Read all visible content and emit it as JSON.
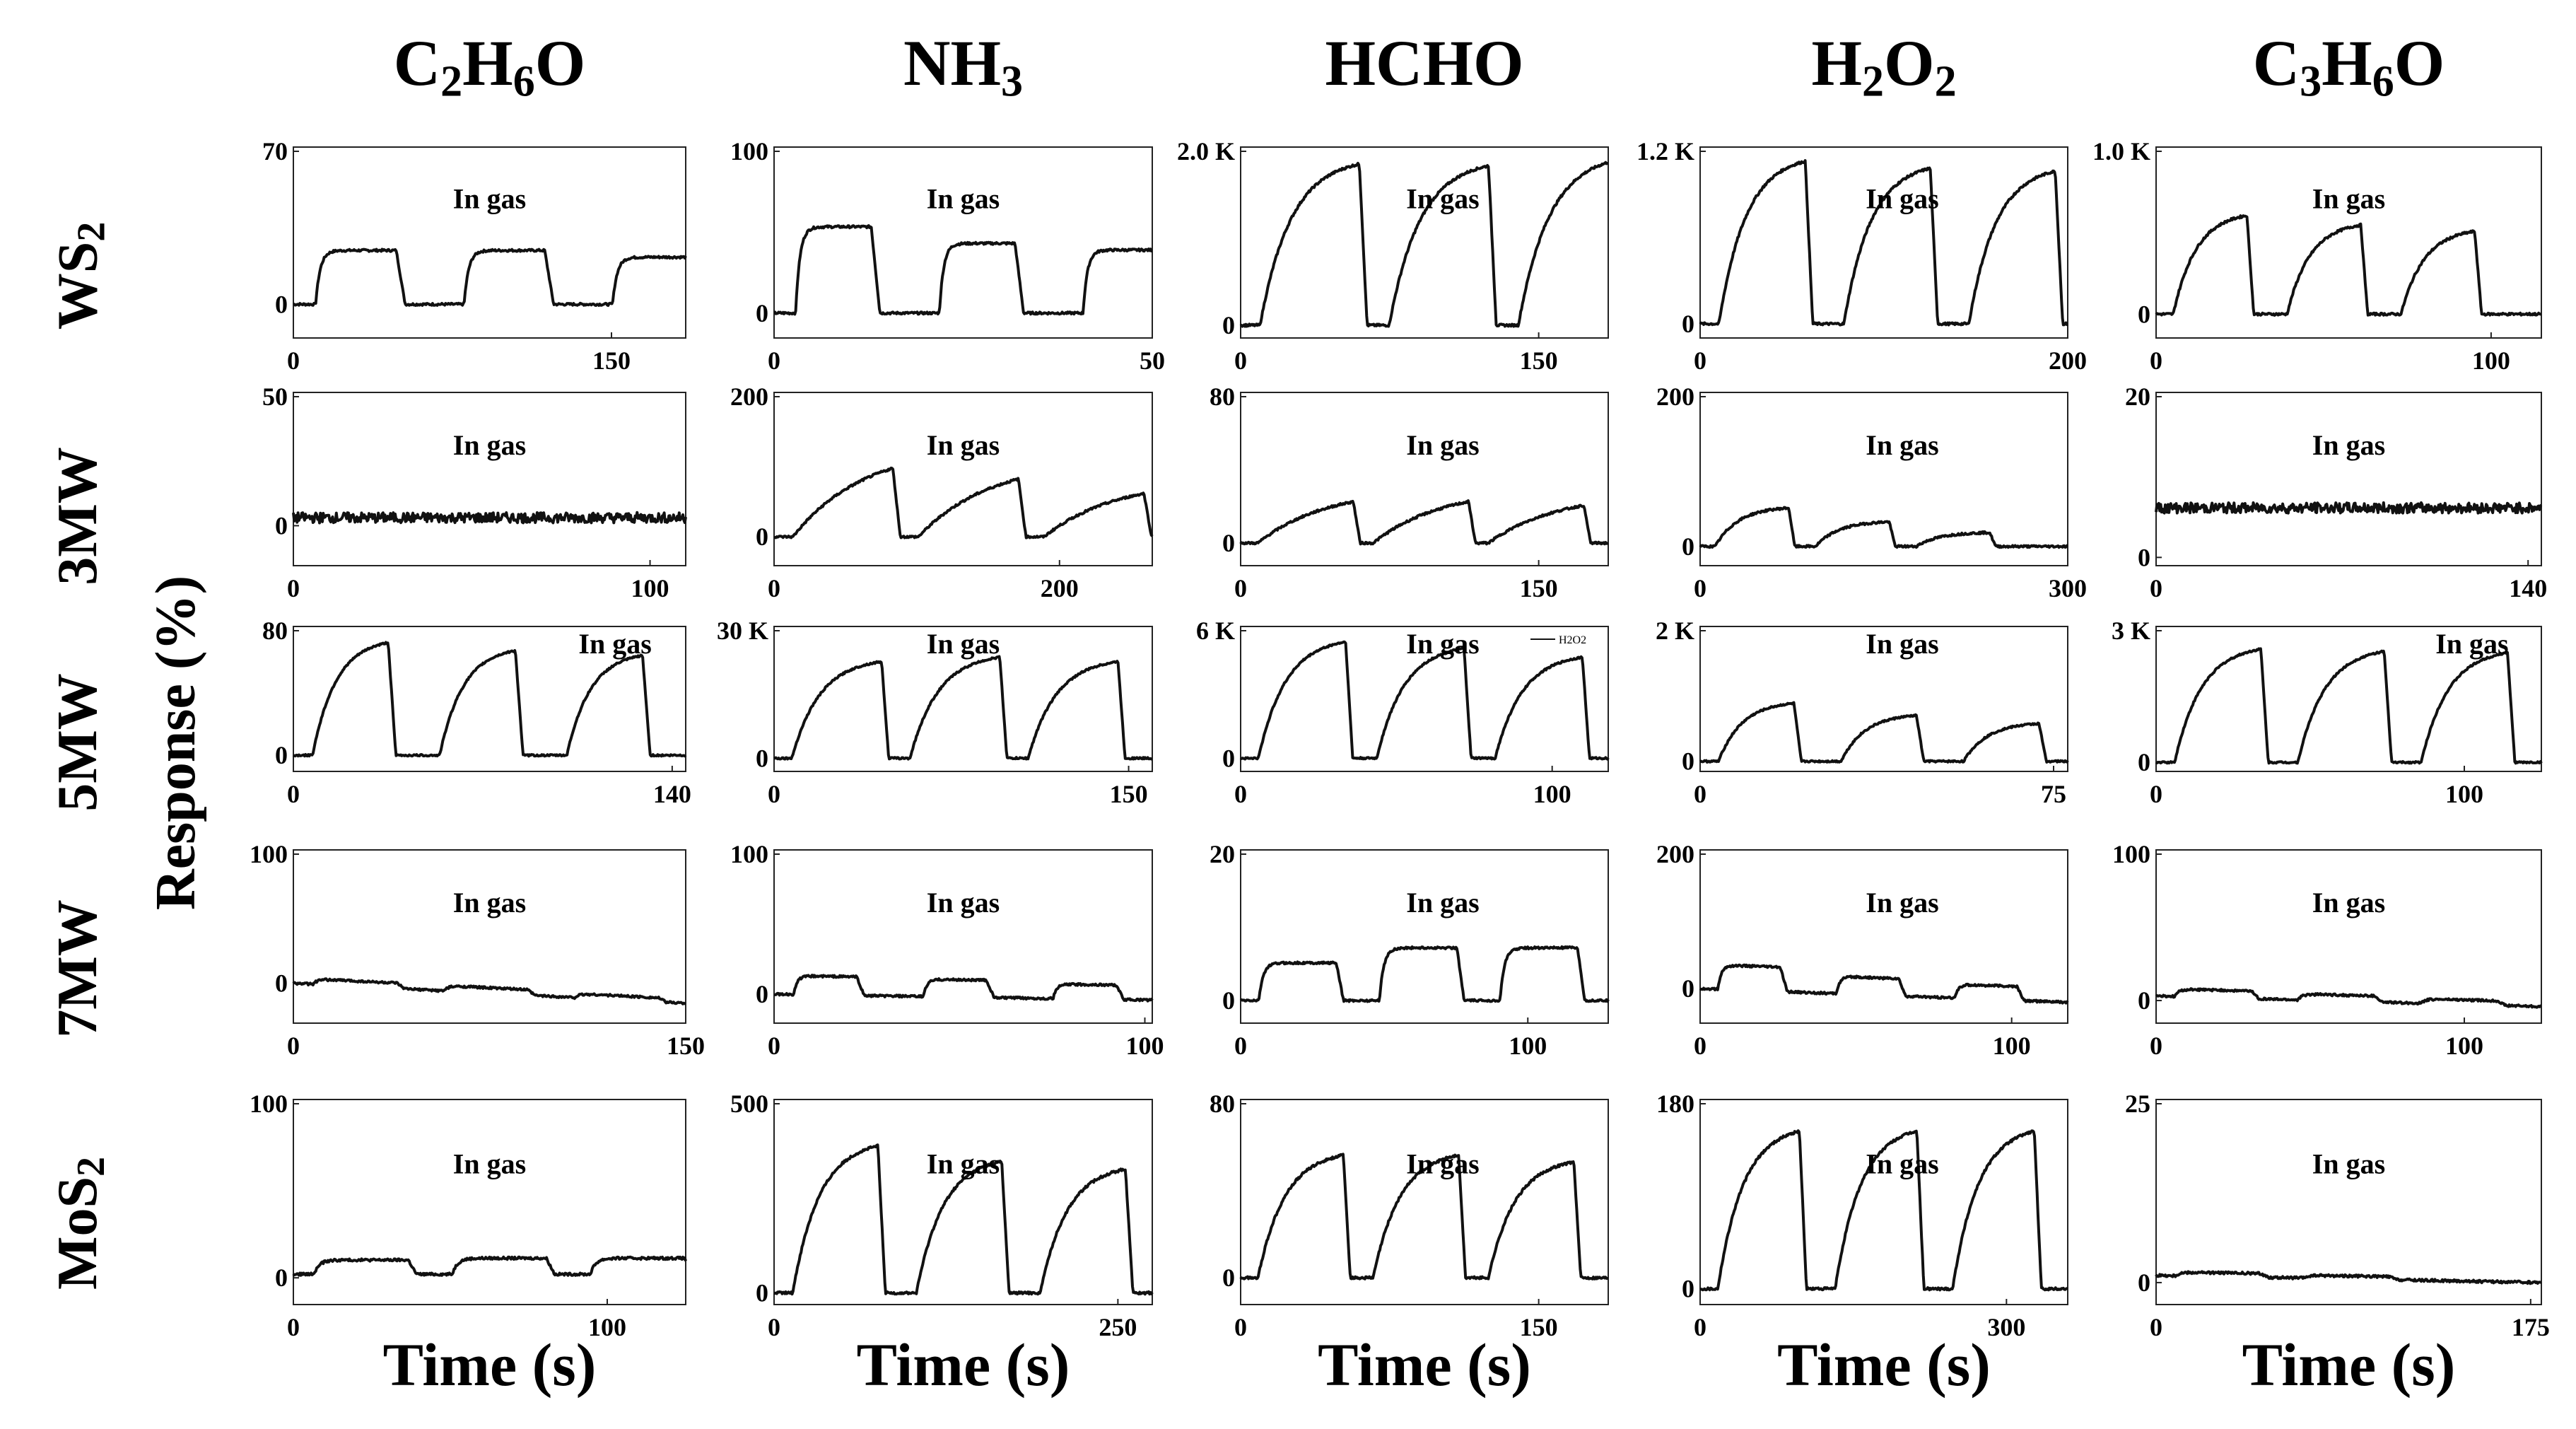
{
  "figure": {
    "columns": [
      {
        "main": "C",
        "parts": [
          [
            "C",
            "2"
          ],
          [
            "H",
            "6"
          ],
          [
            "O",
            ""
          ]
        ]
      },
      {
        "parts": [
          [
            "NH",
            "3"
          ]
        ]
      },
      {
        "parts": [
          [
            "HCHO",
            ""
          ]
        ]
      },
      {
        "parts": [
          [
            "H",
            "2"
          ],
          [
            "O",
            "2"
          ]
        ]
      },
      {
        "parts": [
          [
            "C",
            "3"
          ],
          [
            "H",
            "6"
          ],
          [
            "O",
            ""
          ]
        ]
      }
    ],
    "column_labels": [
      "C2H6O",
      "NH3",
      "HCHO",
      "H2O2",
      "C3H6O"
    ],
    "row_labels": [
      "WS2",
      "3MW",
      "5MW",
      "7MW",
      "MoS2"
    ],
    "y_axis_label": "Response (%)",
    "x_axis_label": "Time  (s)",
    "annotation": "In gas",
    "legend_small": "H2O2"
  },
  "chart_data": [
    {
      "type": "line",
      "row": "WS2",
      "gas": "C2H6O",
      "annotation": "In gas",
      "yticks": [
        "70",
        "0"
      ],
      "ylim": [
        -15,
        70
      ],
      "xticks": [
        0,
        150
      ],
      "xticklabels": [
        "0",
        "150"
      ],
      "xlim": [
        0,
        185
      ],
      "shape": "square",
      "n": 3,
      "cycle": 70,
      "on": 38,
      "amps": [
        24,
        24,
        21
      ],
      "base": 0
    },
    {
      "type": "line",
      "row": "WS2",
      "gas": "NH3",
      "annotation": "In gas",
      "yticks": [
        "100",
        "0"
      ],
      "ylim": [
        -15,
        100
      ],
      "xticks": [
        0,
        50
      ],
      "xticklabels": [
        "0",
        "50"
      ],
      "xlim": [
        0,
        50
      ],
      "shape": "square",
      "n": 3,
      "cycle": 19,
      "on": 10,
      "amps": [
        52,
        42,
        38
      ],
      "base": 0
    },
    {
      "type": "line",
      "row": "WS2",
      "gas": "HCHO",
      "annotation": "In gas",
      "yticks": [
        "2.0 K",
        "0"
      ],
      "ylim": [
        -150,
        2100
      ],
      "xticks": [
        0,
        150
      ],
      "xticklabels": [
        "0",
        "150"
      ],
      "xlim": [
        0,
        185
      ],
      "shape": "exp",
      "n": 3,
      "cycle": 65,
      "on": 50,
      "amps": [
        1900,
        1880,
        1950
      ],
      "base": 0
    },
    {
      "type": "line",
      "row": "WS2",
      "gas": "H2O2",
      "annotation": "In gas",
      "yticks": [
        "1.2 K",
        "0"
      ],
      "ylim": [
        -100,
        1250
      ],
      "xticks": [
        0,
        200
      ],
      "xticklabels": [
        "0",
        "200"
      ],
      "xlim": [
        0,
        200
      ],
      "shape": "exp",
      "n": 3,
      "cycle": 68,
      "on": 47,
      "amps": [
        1150,
        1100,
        1080
      ],
      "base": 0
    },
    {
      "type": "line",
      "row": "WS2",
      "gas": "C3H6O",
      "annotation": "In gas",
      "yticks": [
        "1.0 K",
        "0"
      ],
      "ylim": [
        -150,
        1050
      ],
      "xticks": [
        0,
        100
      ],
      "xticklabels": [
        "0",
        "100"
      ],
      "xlim": [
        0,
        115
      ],
      "shape": "exp",
      "n": 3,
      "cycle": 34,
      "on": 22,
      "amps": [
        620,
        560,
        520
      ],
      "base": 0
    },
    {
      "type": "line",
      "row": "3MW",
      "gas": "C2H6O",
      "annotation": "In gas",
      "yticks": [
        "50",
        "0"
      ],
      "ylim": [
        -15,
        50
      ],
      "xticks": [
        0,
        100
      ],
      "xticklabels": [
        "0",
        "100"
      ],
      "xlim": [
        0,
        110
      ],
      "shape": "flat",
      "n": 0,
      "base": 3
    },
    {
      "type": "line",
      "row": "3MW",
      "gas": "NH3",
      "annotation": "In gas",
      "yticks": [
        "200",
        "0"
      ],
      "ylim": [
        -40,
        200
      ],
      "xticks": [
        0,
        200
      ],
      "xticklabels": [
        "0",
        "200"
      ],
      "xlim": [
        0,
        265
      ],
      "shape": "sawtooth",
      "n": 3,
      "cycle": 88,
      "on": 70,
      "amps": [
        95,
        80,
        60
      ],
      "base": 0
    },
    {
      "type": "line",
      "row": "3MW",
      "gas": "HCHO",
      "annotation": "In gas",
      "yticks": [
        "80",
        "0"
      ],
      "ylim": [
        -12,
        80
      ],
      "xticks": [
        0,
        150
      ],
      "xticklabels": [
        "0",
        "150"
      ],
      "xlim": [
        0,
        185
      ],
      "shape": "sawtooth",
      "n": 3,
      "cycle": 58,
      "on": 48,
      "amps": [
        22,
        22,
        20
      ],
      "base": 0
    },
    {
      "type": "line",
      "row": "3MW",
      "gas": "H2O2",
      "annotation": "In gas",
      "yticks": [
        "200",
        "0"
      ],
      "ylim": [
        -25,
        200
      ],
      "xticks": [
        0,
        300
      ],
      "xticklabels": [
        "0",
        "300"
      ],
      "xlim": [
        0,
        300
      ],
      "shape": "exp",
      "n": 3,
      "cycle": 82,
      "on": 60,
      "amps": [
        50,
        32,
        18
      ],
      "base": 0
    },
    {
      "type": "line",
      "row": "3MW",
      "gas": "C3H6O",
      "annotation": "In gas",
      "yticks": [
        "20",
        "0"
      ],
      "ylim": [
        -1,
        20
      ],
      "xticks": [
        0,
        140
      ],
      "xticklabels": [
        "0",
        "140"
      ],
      "xlim": [
        0,
        145
      ],
      "shape": "flat",
      "n": 0,
      "base": 6
    },
    {
      "type": "line",
      "row": "5MW",
      "gas": "C2H6O",
      "annotation": "In gas",
      "yticks": [
        "80",
        "0"
      ],
      "ylim": [
        -10,
        80
      ],
      "xticks": [
        0,
        140
      ],
      "xticklabels": [
        "0",
        "140"
      ],
      "xlim": [
        0,
        145
      ],
      "shape": "exp",
      "n": 3,
      "cycle": 47,
      "on": 28,
      "amps": [
        70,
        65,
        62
      ],
      "base": 0
    },
    {
      "type": "line",
      "row": "5MW",
      "gas": "NH3",
      "annotation": "In gas",
      "yticks": [
        "30 K",
        "0"
      ],
      "ylim": [
        -3000,
        30000
      ],
      "xticks": [
        0,
        150
      ],
      "xticklabels": [
        "0",
        "150"
      ],
      "xlim": [
        0,
        160
      ],
      "shape": "exp",
      "n": 3,
      "cycle": 50,
      "on": 38,
      "amps": [
        22000,
        23000,
        22000
      ],
      "base": 0
    },
    {
      "type": "line",
      "row": "5MW",
      "gas": "HCHO",
      "annotation": "In gas",
      "yticks": [
        "6 K",
        "0"
      ],
      "ylim": [
        -600,
        6000
      ],
      "xticks": [
        0,
        100
      ],
      "xticklabels": [
        "0",
        "100"
      ],
      "xlim": [
        0,
        118
      ],
      "shape": "exp",
      "n": 3,
      "cycle": 38,
      "on": 28,
      "amps": [
        5300,
        5000,
        4600
      ],
      "base": 0
    },
    {
      "type": "line",
      "row": "5MW",
      "gas": "H2O2",
      "annotation": "In gas",
      "yticks": [
        "2 K",
        "0"
      ],
      "ylim": [
        -150,
        2000
      ],
      "xticks": [
        0,
        75
      ],
      "xticklabels": [
        "0",
        "75"
      ],
      "xlim": [
        0,
        78
      ],
      "shape": "exp",
      "n": 3,
      "cycle": 26,
      "on": 16,
      "amps": [
        860,
        680,
        560
      ],
      "base": 0
    },
    {
      "type": "line",
      "row": "5MW",
      "gas": "C3H6O",
      "annotation": "In gas",
      "yticks": [
        "3 K",
        "0"
      ],
      "ylim": [
        -200,
        3000
      ],
      "xticks": [
        0,
        100
      ],
      "xticklabels": [
        "0",
        "100"
      ],
      "xlim": [
        0,
        125
      ],
      "shape": "exp",
      "n": 3,
      "cycle": 40,
      "on": 28,
      "amps": [
        2500,
        2450,
        2420
      ],
      "base": 0
    },
    {
      "type": "line",
      "row": "7MW",
      "gas": "C2H6O",
      "annotation": "In gas",
      "yticks": [
        "100",
        "0"
      ],
      "ylim": [
        -30,
        100
      ],
      "xticks": [
        0,
        150
      ],
      "xticklabels": [
        "0",
        "150"
      ],
      "xlim": [
        0,
        150
      ],
      "shape": "drift",
      "n": 3,
      "cycle": 50,
      "on": 32,
      "amps": [
        4,
        4,
        3
      ],
      "base": 0,
      "drift": -15
    },
    {
      "type": "line",
      "row": "7MW",
      "gas": "NH3",
      "annotation": "In gas",
      "yticks": [
        "100",
        "0"
      ],
      "ylim": [
        -20,
        100
      ],
      "xticks": [
        0,
        100
      ],
      "xticklabels": [
        "0",
        "100"
      ],
      "xlim": [
        0,
        102
      ],
      "shape": "square",
      "n": 3,
      "cycle": 35,
      "on": 17,
      "amps": [
        13,
        12,
        10
      ],
      "base": 0,
      "drift": -4
    },
    {
      "type": "line",
      "row": "7MW",
      "gas": "HCHO",
      "annotation": "In gas",
      "yticks": [
        "20",
        "0"
      ],
      "ylim": [
        -3,
        20
      ],
      "xticks": [
        0,
        100
      ],
      "xticklabels": [
        "0",
        "100"
      ],
      "xlim": [
        0,
        128
      ],
      "shape": "square",
      "n": 3,
      "cycle": 42,
      "on": 27,
      "amps": [
        5,
        7,
        7
      ],
      "base": 0
    },
    {
      "type": "line",
      "row": "7MW",
      "gas": "H2O2",
      "annotation": "In gas",
      "yticks": [
        "200",
        "0"
      ],
      "ylim": [
        -50,
        200
      ],
      "xticks": [
        0,
        100
      ],
      "xticklabels": [
        "0",
        "100"
      ],
      "xlim": [
        0,
        118
      ],
      "shape": "square",
      "n": 3,
      "cycle": 38,
      "on": 20,
      "amps": [
        35,
        25,
        20
      ],
      "base": 0,
      "drift": -20
    },
    {
      "type": "line",
      "row": "7MW",
      "gas": "C3H6O",
      "annotation": "In gas",
      "yticks": [
        "100",
        "0"
      ],
      "ylim": [
        -15,
        100
      ],
      "xticks": [
        0,
        100
      ],
      "xticklabels": [
        "0",
        "100"
      ],
      "xlim": [
        0,
        125
      ],
      "shape": "drift",
      "n": 3,
      "cycle": 40,
      "on": 25,
      "amps": [
        5,
        4,
        3
      ],
      "base": 3,
      "drift": -7
    },
    {
      "type": "line",
      "row": "MoS2",
      "gas": "C2H6O",
      "annotation": "In gas",
      "yticks": [
        "100",
        "0"
      ],
      "ylim": [
        -15,
        100
      ],
      "xticks": [
        0,
        100
      ],
      "xticklabels": [
        "0",
        "100"
      ],
      "xlim": [
        0,
        125
      ],
      "shape": "square",
      "n": 3,
      "cycle": 44,
      "on": 30,
      "amps": [
        8,
        9,
        9
      ],
      "base": 2
    },
    {
      "type": "line",
      "row": "MoS2",
      "gas": "NH3",
      "annotation": "In gas",
      "yticks": [
        "500",
        "0"
      ],
      "ylim": [
        -30,
        500
      ],
      "xticks": [
        0,
        250
      ],
      "xticklabels": [
        "0",
        "250"
      ],
      "xlim": [
        0,
        275
      ],
      "shape": "exp",
      "n": 3,
      "cycle": 90,
      "on": 62,
      "amps": [
        380,
        340,
        320
      ],
      "base": 0
    },
    {
      "type": "line",
      "row": "MoS2",
      "gas": "HCHO",
      "annotation": "In gas",
      "yticks": [
        "80",
        "0"
      ],
      "ylim": [
        -12,
        80
      ],
      "xticks": [
        0,
        150
      ],
      "xticklabels": [
        "0",
        "150"
      ],
      "xlim": [
        0,
        185
      ],
      "shape": "exp",
      "n": 3,
      "cycle": 58,
      "on": 43,
      "amps": [
        55,
        55,
        52
      ],
      "base": 0
    },
    {
      "type": "line",
      "row": "MoS2",
      "gas": "H2O2",
      "annotation": "In gas",
      "yticks": [
        "180",
        "0"
      ],
      "ylim": [
        -15,
        180
      ],
      "xticks": [
        0,
        300
      ],
      "xticklabels": [
        "0",
        "300"
      ],
      "xlim": [
        0,
        360
      ],
      "shape": "exp",
      "n": 3,
      "cycle": 115,
      "on": 80,
      "amps": [
        150,
        150,
        150
      ],
      "base": 0
    },
    {
      "type": "line",
      "row": "MoS2",
      "gas": "C3H6O",
      "annotation": "In gas",
      "yticks": [
        "25",
        "0"
      ],
      "ylim": [
        -3,
        25
      ],
      "xticks": [
        0,
        175
      ],
      "xticklabels": [
        "0",
        "175"
      ],
      "xlim": [
        0,
        180
      ],
      "shape": "drift",
      "n": 2,
      "cycle": 60,
      "on": 40,
      "amps": [
        0.5,
        0.4
      ],
      "base": 1,
      "drift": -1
    }
  ]
}
